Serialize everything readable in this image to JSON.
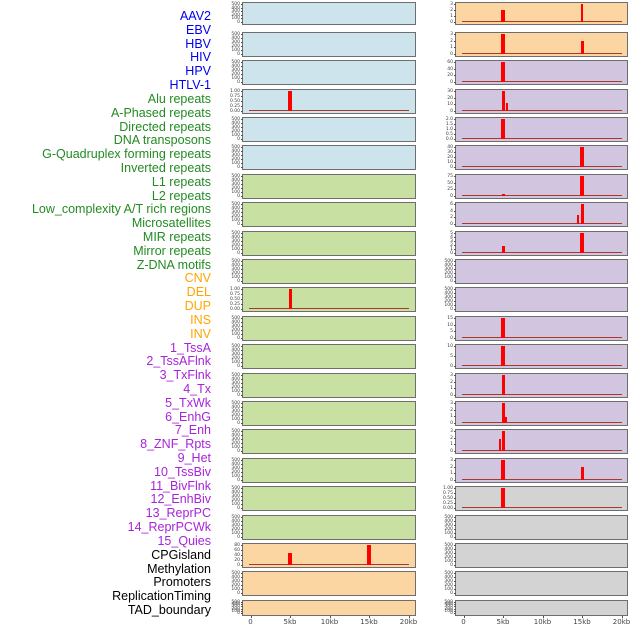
{
  "colors": {
    "bar": "#ff0000",
    "baseline": "#a93a2a",
    "box_border": "#6e6e6e",
    "tick_text": "#3a3a3a",
    "axis_text": "#444444",
    "label_colors": {
      "virus": "#0000ee",
      "repeat": "#228b22",
      "sv": "#ffa500",
      "chromatin": "#a824d8",
      "other": "#000000"
    },
    "bg_colors": {
      "virus": "#cee4ec",
      "repeat": "#c9e0a3",
      "sv": "#fbd5a2",
      "chromatin": "#d2c5e0",
      "other": "#d3d3d3"
    }
  },
  "chart_data": {
    "type": "bar",
    "title": "",
    "x_axis": {
      "tick_labels": [
        "0",
        "5kb",
        "10kb",
        "15kb",
        "20kb"
      ],
      "range_kb": [
        0,
        20
      ]
    },
    "columns": [
      {
        "tracks": [
          {
            "label": "AAV2",
            "cat": "virus",
            "yticks": [
              "500",
              "400",
              "300",
              "200",
              "100",
              "0"
            ],
            "ytop": 525,
            "baseline": false,
            "bars": []
          },
          {
            "label": "EBV",
            "cat": "virus",
            "yticks": [
              "500",
              "400",
              "300",
              "200",
              "100",
              "0"
            ],
            "ytop": 525,
            "baseline": false,
            "bars": []
          },
          {
            "label": "HBV",
            "cat": "virus",
            "yticks": [
              "500",
              "400",
              "300",
              "200",
              "100",
              "0"
            ],
            "ytop": 525,
            "baseline": false,
            "bars": []
          },
          {
            "label": "HIV",
            "cat": "virus",
            "yticks": [
              "1.00",
              "0.75",
              "0.50",
              "0.25",
              "0.00"
            ],
            "ytop": 1.05,
            "baseline": true,
            "bars": [
              {
                "kb": 5,
                "value": 1.04,
                "w": 4
              }
            ]
          },
          {
            "label": "HPV",
            "cat": "virus",
            "yticks": [
              "500",
              "400",
              "300",
              "200",
              "100",
              "0"
            ],
            "ytop": 525,
            "baseline": false,
            "bars": []
          },
          {
            "label": "HTLV-1",
            "cat": "virus",
            "yticks": [
              "500",
              "400",
              "300",
              "200",
              "100",
              "0"
            ],
            "ytop": 525,
            "baseline": false,
            "bars": []
          },
          {
            "label": "Alu repeats",
            "cat": "repeat",
            "yticks": [
              "500",
              "400",
              "300",
              "200",
              "100",
              "0"
            ],
            "ytop": 525,
            "baseline": false,
            "bars": []
          },
          {
            "label": "A-Phased repeats",
            "cat": "repeat",
            "yticks": [
              "500",
              "400",
              "300",
              "200",
              "100",
              "0"
            ],
            "ytop": 525,
            "baseline": false,
            "bars": []
          },
          {
            "label": "Directed repeats",
            "cat": "repeat",
            "yticks": [
              "500",
              "400",
              "300",
              "200",
              "100",
              "0"
            ],
            "ytop": 525,
            "baseline": false,
            "bars": []
          },
          {
            "label": "DNA transposons",
            "cat": "repeat",
            "yticks": [
              "500",
              "400",
              "300",
              "200",
              "100",
              "0"
            ],
            "ytop": 525,
            "baseline": false,
            "bars": []
          },
          {
            "label": "G-Quadruplex forming repeats",
            "cat": "repeat",
            "yticks": [
              "1.00",
              "0.75",
              "0.50",
              "0.25",
              "0.00"
            ],
            "ytop": 1.05,
            "baseline": true,
            "bars": [
              {
                "kb": 5,
                "value": 1.04,
                "w": 3
              }
            ]
          },
          {
            "label": "Inverted repeats",
            "cat": "repeat",
            "yticks": [
              "500",
              "400",
              "300",
              "200",
              "100",
              "0"
            ],
            "ytop": 525,
            "baseline": false,
            "bars": []
          },
          {
            "label": "L1 repeats",
            "cat": "repeat",
            "yticks": [
              "500",
              "400",
              "300",
              "200",
              "100",
              "0"
            ],
            "ytop": 525,
            "baseline": false,
            "bars": []
          },
          {
            "label": "L2 repeats",
            "cat": "repeat",
            "yticks": [
              "500",
              "400",
              "300",
              "200",
              "100",
              "0"
            ],
            "ytop": 525,
            "baseline": false,
            "bars": []
          },
          {
            "label": "Low_complexity A/T rich regions",
            "cat": "repeat",
            "yticks": [
              "500",
              "400",
              "300",
              "200",
              "100",
              "0"
            ],
            "ytop": 525,
            "baseline": false,
            "bars": []
          },
          {
            "label": "Microsatellites",
            "cat": "repeat",
            "yticks": [
              "500",
              "400",
              "300",
              "200",
              "100",
              "0"
            ],
            "ytop": 525,
            "baseline": false,
            "bars": []
          },
          {
            "label": "MIR repeats",
            "cat": "repeat",
            "yticks": [
              "500",
              "400",
              "300",
              "200",
              "100",
              "0"
            ],
            "ytop": 525,
            "baseline": false,
            "bars": []
          },
          {
            "label": "Mirror repeats",
            "cat": "repeat",
            "yticks": [
              "500",
              "400",
              "300",
              "200",
              "100",
              "0"
            ],
            "ytop": 525,
            "baseline": false,
            "bars": []
          },
          {
            "label": "Z-DNA motifs",
            "cat": "repeat",
            "yticks": [
              "500",
              "400",
              "300",
              "200",
              "100",
              "0"
            ],
            "ytop": 525,
            "baseline": false,
            "bars": []
          },
          {
            "label": "CNV",
            "cat": "sv",
            "yticks": [
              "80",
              "60",
              "40",
              "20",
              "0"
            ],
            "ytop": 95,
            "baseline": true,
            "bars": [
              {
                "kb": 5,
                "value": 55,
                "w": 4
              },
              {
                "kb": 15,
                "value": 95,
                "w": 4
              }
            ]
          },
          {
            "label": "DEL",
            "cat": "sv",
            "yticks": [
              "500",
              "400",
              "300",
              "200",
              "100",
              "0"
            ],
            "ytop": 525,
            "baseline": false,
            "bars": []
          },
          {
            "label": "DUP",
            "cat": "sv",
            "yticks": [
              "500",
              "400",
              "300",
              "200",
              "100",
              "0"
            ],
            "ytop": 525,
            "baseline": false,
            "bars": []
          }
        ]
      },
      {
        "tracks": [
          {
            "label": "INS",
            "cat": "sv",
            "yticks": [
              "3",
              "2",
              "1",
              "0"
            ],
            "ytop": 3.4,
            "baseline": true,
            "bars": [
              {
                "kb": 5,
                "value": 2.2,
                "w": 4
              },
              {
                "kb": 15,
                "value": 3.4,
                "w": 2
              }
            ]
          },
          {
            "label": "INV",
            "cat": "sv",
            "yticks": [
              "3",
              "2",
              "1",
              "0"
            ],
            "ytop": 3.4,
            "baseline": true,
            "bars": [
              {
                "kb": 5,
                "value": 3.4,
                "w": 4
              },
              {
                "kb": 15,
                "value": 2.2,
                "w": 3
              }
            ]
          },
          {
            "label": "1_TssA",
            "cat": "chromatin",
            "yticks": [
              "60",
              "40",
              "20",
              "0"
            ],
            "ytop": 65,
            "baseline": true,
            "bars": [
              {
                "kb": 5,
                "value": 65,
                "w": 4
              }
            ]
          },
          {
            "label": "2_TssAFlnk",
            "cat": "chromatin",
            "yticks": [
              "30",
              "20",
              "10",
              "0"
            ],
            "ytop": 33,
            "baseline": true,
            "bars": [
              {
                "kb": 5,
                "value": 33,
                "w": 3
              },
              {
                "kb": 5.5,
                "value": 14,
                "w": 2
              }
            ]
          },
          {
            "label": "3_TxFlnk",
            "cat": "chromatin",
            "yticks": [
              "2.0",
              "1.5",
              "1.0",
              "0.5",
              "0.0"
            ],
            "ytop": 2.15,
            "baseline": true,
            "bars": [
              {
                "kb": 5,
                "value": 2.15,
                "w": 4
              }
            ]
          },
          {
            "label": "4_Tx",
            "cat": "chromatin",
            "yticks": [
              "40",
              "30",
              "20",
              "10",
              "0"
            ],
            "ytop": 45,
            "baseline": true,
            "bars": [
              {
                "kb": 15,
                "value": 45,
                "w": 4
              }
            ]
          },
          {
            "label": "5_TxWk",
            "cat": "chromatin",
            "yticks": [
              "75",
              "50",
              "25",
              "0"
            ],
            "ytop": 82,
            "baseline": true,
            "bars": [
              {
                "kb": 5,
                "value": 8,
                "w": 3
              },
              {
                "kb": 15,
                "value": 82,
                "w": 4
              }
            ]
          },
          {
            "label": "6_EnhG",
            "cat": "chromatin",
            "yticks": [
              "6",
              "4",
              "2",
              "0"
            ],
            "ytop": 6.6,
            "baseline": true,
            "bars": [
              {
                "kb": 14.5,
                "value": 3,
                "w": 2
              },
              {
                "kb": 15,
                "value": 6.6,
                "w": 3
              }
            ]
          },
          {
            "label": "7_Enh",
            "cat": "chromatin",
            "yticks": [
              "5",
              "4",
              "3",
              "2",
              "1",
              "0"
            ],
            "ytop": 5.4,
            "baseline": true,
            "bars": [
              {
                "kb": 5,
                "value": 2,
                "w": 3
              },
              {
                "kb": 15,
                "value": 5.4,
                "w": 4
              }
            ]
          },
          {
            "label": "8_ZNF_Rpts",
            "cat": "chromatin",
            "yticks": [
              "500",
              "400",
              "300",
              "200",
              "100",
              "0"
            ],
            "ytop": 525,
            "baseline": false,
            "bars": []
          },
          {
            "label": "9_Het",
            "cat": "chromatin",
            "yticks": [
              "500",
              "400",
              "300",
              "200",
              "100",
              "0"
            ],
            "ytop": 525,
            "baseline": false,
            "bars": []
          },
          {
            "label": "10_TssBiv",
            "cat": "chromatin",
            "yticks": [
              "15",
              "10",
              "5",
              "0"
            ],
            "ytop": 17,
            "baseline": true,
            "bars": [
              {
                "kb": 5,
                "value": 17,
                "w": 4
              }
            ]
          },
          {
            "label": "11_BivFlnk",
            "cat": "chromatin",
            "yticks": [
              "10",
              "5",
              "0"
            ],
            "ytop": 11,
            "baseline": true,
            "bars": [
              {
                "kb": 5,
                "value": 11,
                "w": 4
              }
            ]
          },
          {
            "label": "12_EnhBiv",
            "cat": "chromatin",
            "yticks": [
              "3",
              "2",
              "1",
              "0"
            ],
            "ytop": 3.3,
            "baseline": true,
            "bars": [
              {
                "kb": 5,
                "value": 3.3,
                "w": 3
              }
            ]
          },
          {
            "label": "13_ReprPC",
            "cat": "chromatin",
            "yticks": [
              "3",
              "2",
              "1",
              "0"
            ],
            "ytop": 3.3,
            "baseline": true,
            "bars": [
              {
                "kb": 5,
                "value": 3.3,
                "w": 3
              },
              {
                "kb": 5.4,
                "value": 1,
                "w": 2
              }
            ]
          },
          {
            "label": "14_ReprPCWk",
            "cat": "chromatin",
            "yticks": [
              "3",
              "2",
              "1",
              "0"
            ],
            "ytop": 3.3,
            "baseline": true,
            "bars": [
              {
                "kb": 4.6,
                "value": 2,
                "w": 2
              },
              {
                "kb": 5,
                "value": 3.3,
                "w": 3
              }
            ]
          },
          {
            "label": "15_Quies",
            "cat": "chromatin",
            "yticks": [
              "3",
              "2",
              "1",
              "0"
            ],
            "ytop": 3.4,
            "baseline": true,
            "bars": [
              {
                "kb": 5,
                "value": 3.4,
                "w": 4
              },
              {
                "kb": 15,
                "value": 2.2,
                "w": 3
              }
            ]
          },
          {
            "label": "CPGisland",
            "cat": "other",
            "yticks": [
              "1.00",
              "0.75",
              "0.50",
              "0.25",
              "0.00"
            ],
            "ytop": 1.05,
            "baseline": true,
            "bars": [
              {
                "kb": 5,
                "value": 1.04,
                "w": 4
              }
            ]
          },
          {
            "label": "Methylation",
            "cat": "other",
            "yticks": [
              "500",
              "400",
              "300",
              "200",
              "100",
              "0"
            ],
            "ytop": 525,
            "baseline": false,
            "bars": []
          },
          {
            "label": "Promoters",
            "cat": "other",
            "yticks": [
              "500",
              "400",
              "300",
              "200",
              "100",
              "0"
            ],
            "ytop": 525,
            "baseline": false,
            "bars": []
          },
          {
            "label": "ReplicationTiming",
            "cat": "other",
            "yticks": [
              "500",
              "400",
              "300",
              "200",
              "100",
              "0"
            ],
            "ytop": 525,
            "baseline": false,
            "bars": []
          },
          {
            "label": "TAD_boundary",
            "cat": "other",
            "yticks": [
              "500",
              "400",
              "300",
              "200",
              "100",
              "0"
            ],
            "ytop": 525,
            "baseline": false,
            "bars": []
          }
        ]
      }
    ]
  }
}
